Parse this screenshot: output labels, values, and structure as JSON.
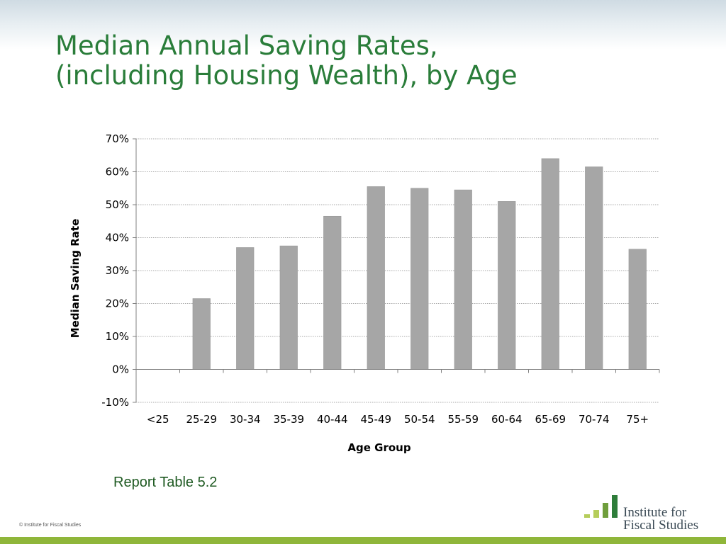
{
  "slide": {
    "title_line1": "Median Annual Saving Rates,",
    "title_line2": "(including Housing Wealth), by Age",
    "report_ref": "Report Table 5.2",
    "copyright": "© Institute for Fiscal Studies"
  },
  "logo": {
    "line1": "Institute for",
    "line2": "Fiscal Studies",
    "icon": "ascending-bars-logo-icon"
  },
  "colors": {
    "title": "#2a7d3a",
    "bar": "#a6a6a6",
    "bottom_bar": "#8fb63a",
    "logo_light_green": "#b5cd5b",
    "logo_dark_green": "#2e7d3a"
  },
  "chart_data": {
    "type": "bar",
    "title": "",
    "xlabel": "Age Group",
    "ylabel": "Median Saving Rate",
    "categories": [
      "<25",
      "25-29",
      "30-34",
      "35-39",
      "40-44",
      "45-49",
      "50-54",
      "55-59",
      "60-64",
      "65-69",
      "70-74",
      "75+"
    ],
    "values": [
      0,
      21.5,
      37,
      37.5,
      46.5,
      55.5,
      55,
      54.5,
      51,
      64,
      61.5,
      36.5
    ],
    "ylim": [
      -10,
      70
    ],
    "yticks": [
      70,
      60,
      50,
      40,
      30,
      20,
      10,
      0,
      -10
    ],
    "ytick_labels": [
      "70%",
      "60%",
      "50%",
      "40%",
      "30%",
      "20%",
      "10%",
      "0%",
      "-10%"
    ],
    "grid": true,
    "legend": "none"
  }
}
